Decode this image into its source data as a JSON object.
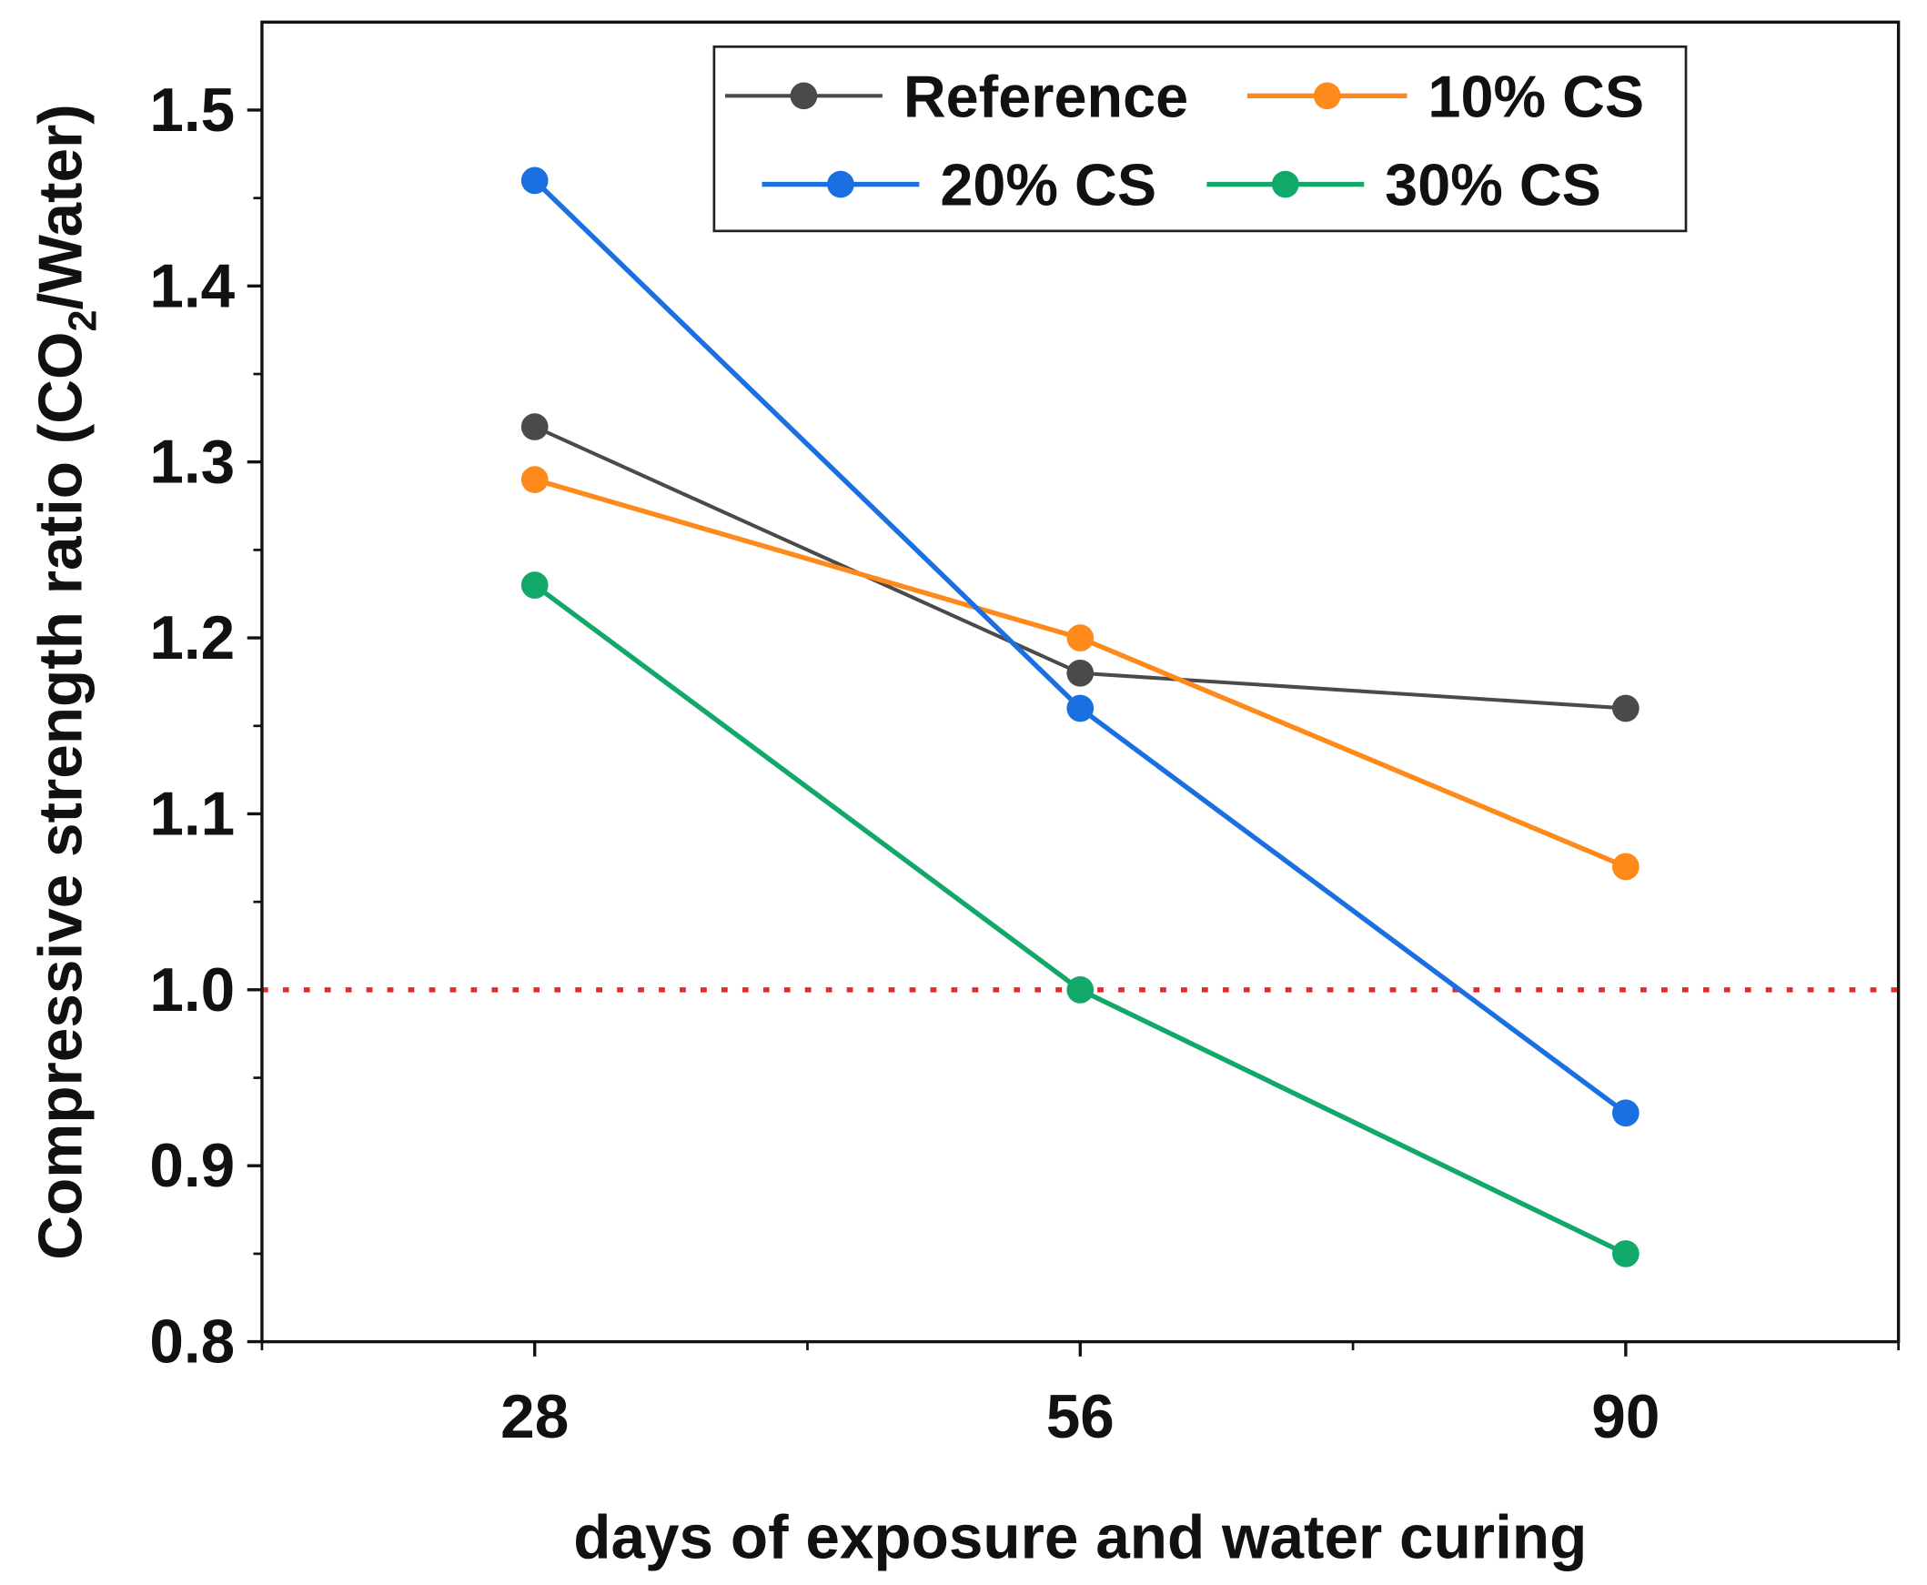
{
  "chart_data": {
    "type": "line",
    "title": "",
    "xlabel": "days of exposure and water curing",
    "ylabel_parts": {
      "prefix": "Compressive strength ratio (CO",
      "subscript": "2",
      "suffix": "/Water)"
    },
    "categories": [
      "28",
      "56",
      "90"
    ],
    "ylim": [
      0.8,
      1.55
    ],
    "yticks": [
      0.8,
      0.9,
      1.0,
      1.1,
      1.2,
      1.3,
      1.4,
      1.5
    ],
    "ytick_labels": [
      "0.8",
      "0.9",
      "1.0",
      "1.1",
      "1.2",
      "1.3",
      "1.4",
      "1.5"
    ],
    "grid": false,
    "legend_position": "top-right",
    "reference_line": {
      "y": 1.0,
      "style": "dotted",
      "color": "#e62a2a"
    },
    "series": [
      {
        "name": "Reference",
        "color": "#4a4a4a",
        "values": [
          1.32,
          1.18,
          1.16
        ]
      },
      {
        "name": "10% CS",
        "color": "#ff8a1c",
        "values": [
          1.29,
          1.2,
          1.07
        ]
      },
      {
        "name": "20% CS",
        "color": "#1a70e0",
        "values": [
          1.46,
          1.16,
          0.93
        ]
      },
      {
        "name": "30% CS",
        "color": "#12a86a",
        "values": [
          1.23,
          1.0,
          0.85
        ]
      }
    ]
  }
}
